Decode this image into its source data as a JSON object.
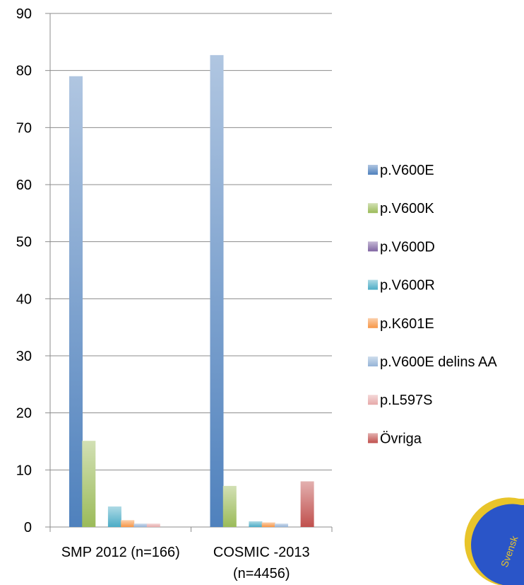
{
  "chart_data": {
    "type": "bar",
    "title": "",
    "xlabel": "",
    "ylabel": "",
    "ylim": [
      0,
      90
    ],
    "yticks": [
      0,
      10,
      20,
      30,
      40,
      50,
      60,
      70,
      80,
      90
    ],
    "grid": true,
    "legend_position": "right",
    "categories": [
      [
        "SMP 2012 (n=166)"
      ],
      [
        "COSMIC -2013",
        "(n=4456)"
      ]
    ],
    "series": [
      {
        "name": "p.V600E",
        "color": "#4f81bd",
        "values": [
          79,
          82.7
        ]
      },
      {
        "name": "p.V600K",
        "color": "#9bbb59",
        "values": [
          15.1,
          7.2
        ]
      },
      {
        "name": "p.V600D",
        "color": "#8064a2",
        "values": [
          0,
          0
        ]
      },
      {
        "name": "p.V600R",
        "color": "#4bacc6",
        "values": [
          3.6,
          1.0
        ]
      },
      {
        "name": "p.K601E",
        "color": "#f79646",
        "values": [
          1.2,
          0.8
        ]
      },
      {
        "name": "p.V600E delins AA",
        "color": "#95b3d7",
        "values": [
          0.6,
          0.6
        ]
      },
      {
        "name": "p.L597S",
        "color": "#e6a9a9",
        "values": [
          0.6,
          0
        ]
      },
      {
        "name": "Övriga",
        "color": "#c0504d",
        "values": [
          0,
          8.0
        ]
      }
    ]
  },
  "watermark": {
    "text": "Svensk",
    "color": "#2a55c8",
    "ring_color": "#e8c42a"
  }
}
